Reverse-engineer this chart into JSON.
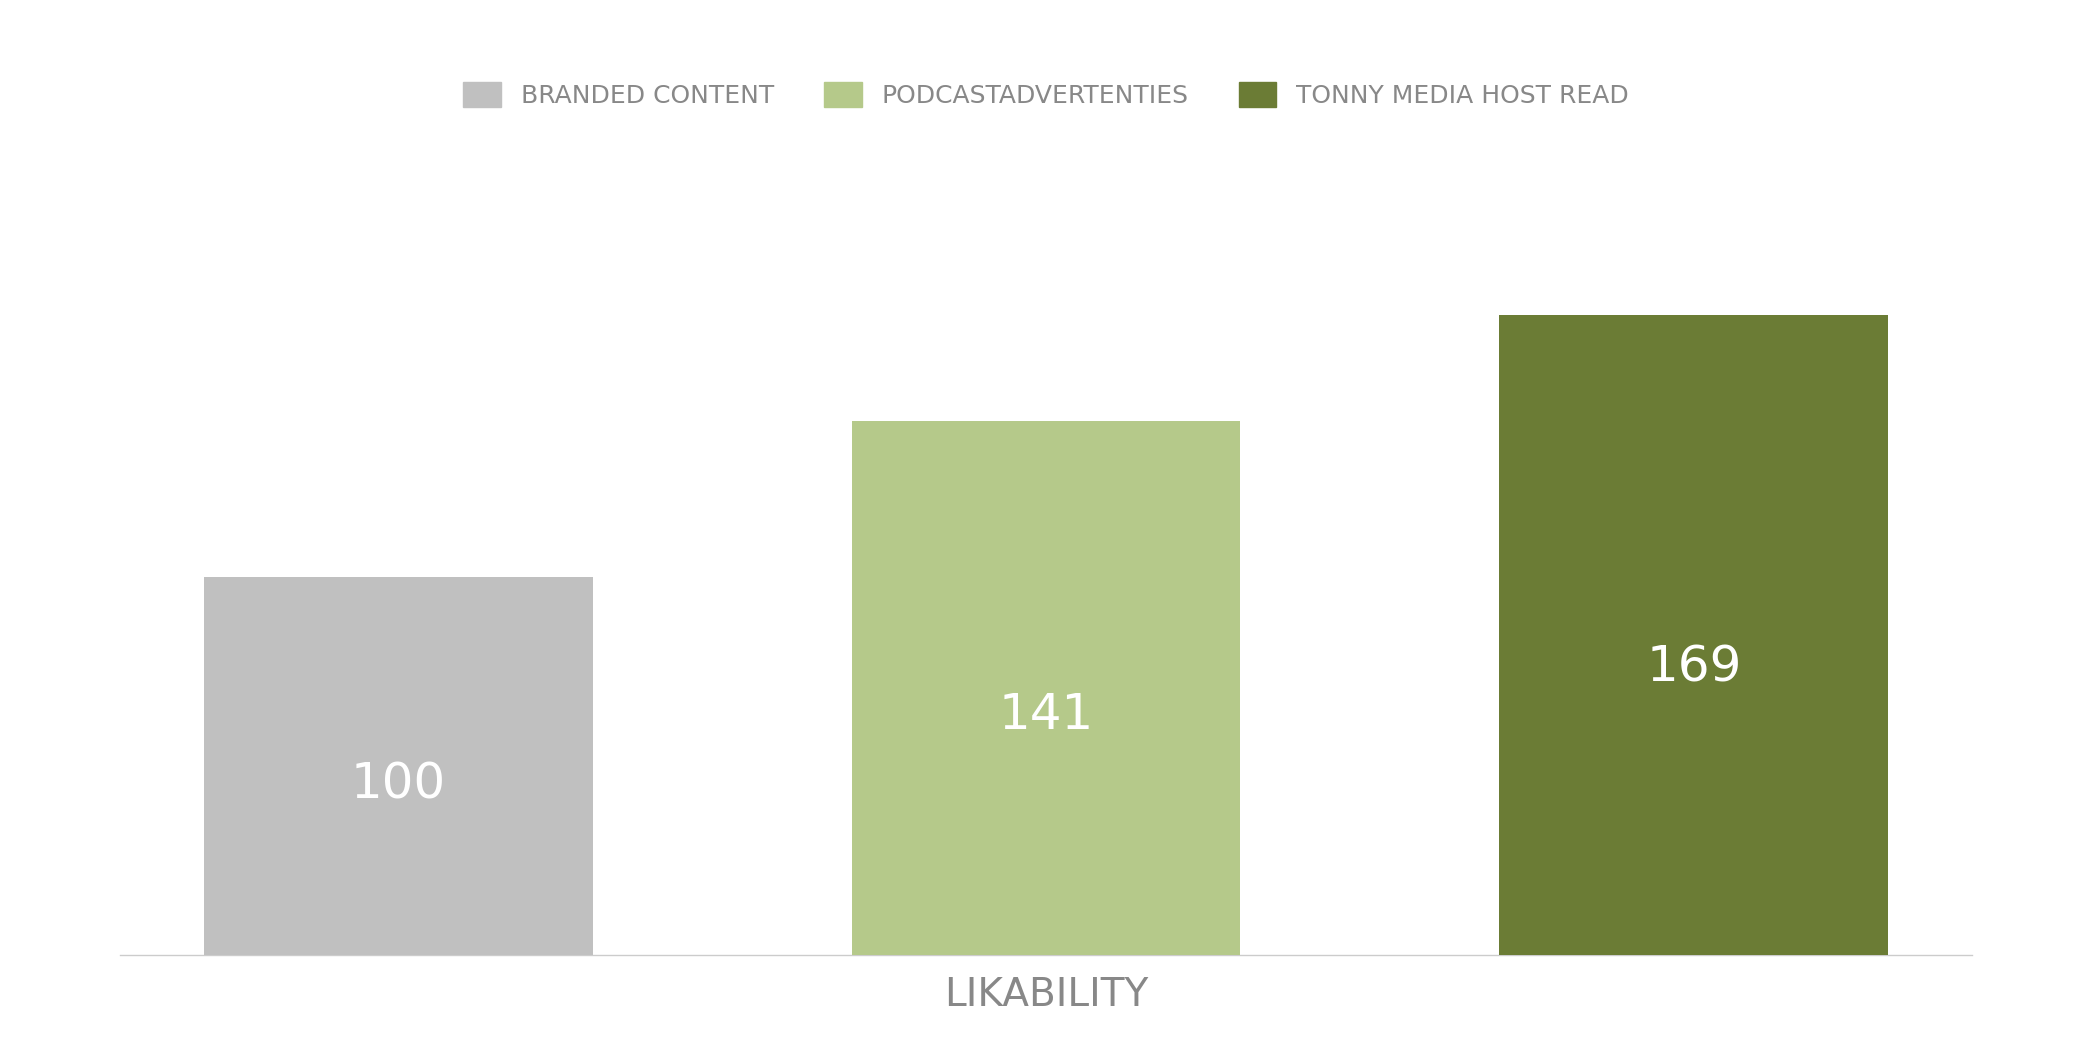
{
  "categories": [
    "BRANDED CONTENT",
    "PODCASTADVERTENTIES",
    "TONNY MEDIA HOST READ"
  ],
  "values": [
    100,
    141,
    169
  ],
  "bar_colors": [
    "#c0c0c0",
    "#b5c98a",
    "#6b7c35"
  ],
  "label_values": [
    "100",
    "141",
    "169"
  ],
  "xlabel": "LIKABILITY",
  "xlabel_color": "#888888",
  "xlabel_fontsize": 28,
  "legend_labels": [
    "BRANDED CONTENT",
    "PODCASTADVERTENTIES",
    "TONNY MEDIA HOST READ"
  ],
  "legend_colors": [
    "#c0c0c0",
    "#b5c98a",
    "#6b7c35"
  ],
  "legend_fontsize": 18,
  "value_fontsize": 36,
  "value_color": "#ffffff",
  "background_color": "#ffffff",
  "bar_width": 0.6,
  "ylim": [
    0,
    210
  ],
  "spine_color": "#cccccc"
}
